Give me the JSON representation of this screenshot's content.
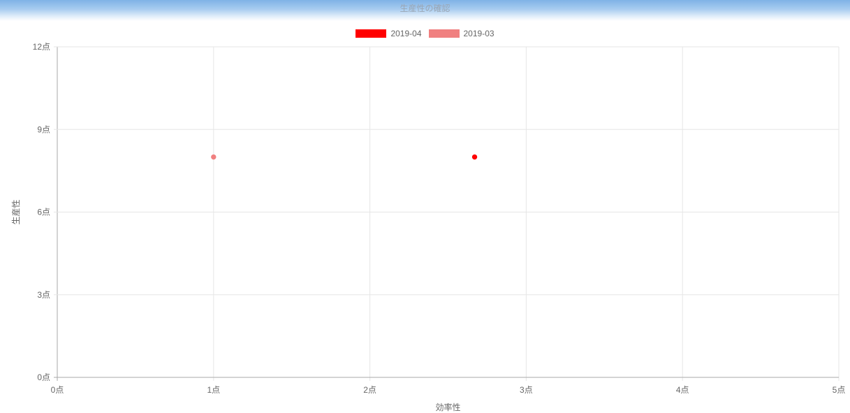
{
  "header": {
    "title": "生産性の確認"
  },
  "legend": [
    {
      "label": "2019-04",
      "color": "#ff0000"
    },
    {
      "label": "2019-03",
      "color": "#f08080"
    }
  ],
  "chart_data": {
    "type": "scatter",
    "xlabel": "効率性",
    "ylabel": "生産性",
    "xlim": [
      0,
      5
    ],
    "ylim": [
      0,
      12
    ],
    "x_ticks": [
      "0点",
      "1点",
      "2点",
      "3点",
      "4点",
      "5点"
    ],
    "y_ticks": [
      "0点",
      "3点",
      "6点",
      "9点",
      "12点"
    ],
    "grid": true,
    "legend_position": "top-center",
    "series": [
      {
        "name": "2019-04",
        "color": "#ff0000",
        "points": [
          {
            "x": 2.67,
            "y": 8
          }
        ]
      },
      {
        "name": "2019-03",
        "color": "#f08080",
        "points": [
          {
            "x": 1,
            "y": 8
          }
        ]
      }
    ]
  }
}
